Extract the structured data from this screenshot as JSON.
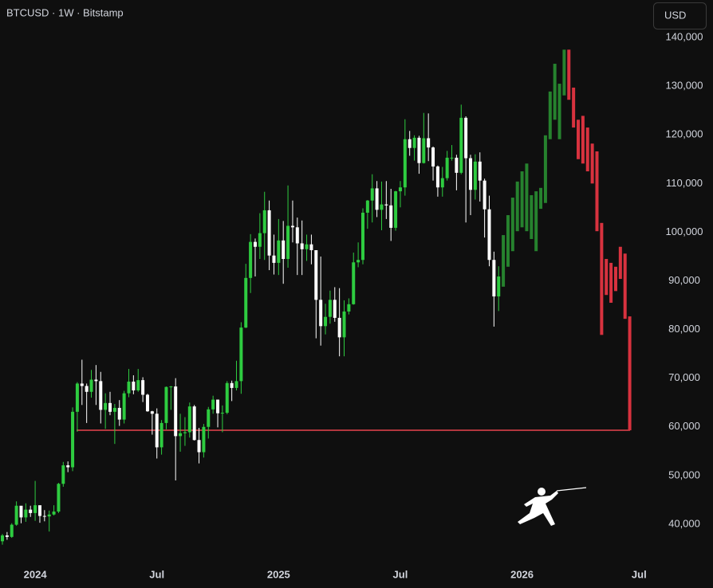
{
  "chart_data": {
    "type": "candlestick",
    "title": "BTCUSD · 1W · Bitstamp",
    "currency": "USD",
    "categories": [
      null,
      null,
      null,
      null,
      null,
      null,
      null,
      "2024",
      null,
      null,
      null,
      null,
      null,
      null,
      null,
      null,
      null,
      null,
      null,
      null,
      null,
      null,
      null,
      null,
      null,
      null,
      null,
      null,
      null,
      null,
      null,
      null,
      null,
      "Jul",
      null,
      null,
      null,
      null,
      null,
      null,
      null,
      null,
      null,
      null,
      null,
      null,
      null,
      null,
      null,
      null,
      null,
      null,
      null,
      null,
      null,
      null,
      null,
      null,
      null,
      "2025",
      null,
      null,
      null,
      null,
      null,
      null,
      null,
      null,
      null,
      null,
      null,
      null,
      null,
      null,
      null,
      null,
      null,
      null,
      null,
      null,
      null,
      null,
      null,
      null,
      null,
      "Jul",
      null,
      null,
      null,
      null,
      null,
      null,
      null,
      null,
      null,
      null,
      null,
      null,
      null,
      null,
      null,
      null,
      null,
      null,
      null,
      null,
      null,
      null,
      null,
      null,
      null,
      "2026",
      null,
      null,
      null,
      null,
      null,
      null,
      null,
      null,
      null,
      null,
      null,
      null,
      null,
      null,
      null,
      null,
      null,
      null,
      null,
      null,
      null,
      null,
      null,
      null,
      "Jul"
    ],
    "series": [
      {
        "up_color": "#2ecc40",
        "down_color": "#ffffff",
        "open": [
          36500,
          37700,
          37400,
          39900,
          43800,
          41400,
          43000,
          42300,
          43900,
          41700,
          41600,
          42000,
          42600,
          48300,
          52100,
          51700,
          63100,
          68900,
          68400,
          67200,
          69700,
          69400,
          63500,
          64900,
          63100,
          63900,
          61500,
          66900,
          69300,
          67500,
          69600,
          66600,
          63200,
          62700,
          55800,
          60800,
          68200,
          68300,
          58100,
          58700,
          58900,
          64200,
          57300,
          54800,
          60000,
          63600,
          65600,
          62800,
          62900,
          69000,
          68000,
          69400,
          80400,
          90600,
          98000,
          97000,
          99800,
          104500,
          95200,
          93700,
          98300,
          94500,
          101300,
          101000,
          97700,
          96500,
          97500,
          96300,
          86100,
          80700,
          82600,
          86100,
          82400,
          78400,
          83700,
          85200,
          93800,
          94300,
          104000,
          106500,
          109000,
          104600,
          105700,
          105500,
          100900,
          108400,
          109200,
          119100,
          117300,
          119400,
          114200,
          119300,
          117400,
          113500,
          109200,
          111100,
          115300,
          115300,
          112200,
          123500,
          115200,
          108700,
          114500,
          110600,
          104700,
          94300,
          86800,
          null,
          null,
          null,
          null,
          null,
          null,
          null,
          null,
          null,
          null,
          null,
          null,
          null,
          null,
          null,
          null,
          null,
          null,
          null,
          null,
          null,
          null,
          null,
          null,
          null,
          null,
          null,
          null,
          null,
          null
        ],
        "high": [
          38000,
          38400,
          40200,
          44700,
          43500,
          44300,
          43800,
          48900,
          43500,
          42900,
          42800,
          43900,
          48500,
          52800,
          52900,
          64000,
          69200,
          73800,
          68900,
          71700,
          72700,
          71300,
          66900,
          67200,
          64700,
          65500,
          67400,
          71900,
          70600,
          71900,
          70200,
          66800,
          63300,
          63800,
          61400,
          68300,
          68400,
          70000,
          62700,
          62000,
          65000,
          64500,
          59800,
          60600,
          64100,
          66400,
          65600,
          64400,
          69400,
          69500,
          73600,
          81500,
          93500,
          99600,
          98700,
          103900,
          108300,
          106500,
          99500,
          102700,
          102300,
          109600,
          106500,
          103000,
          102400,
          99500,
          99500,
          96300,
          95000,
          85300,
          88000,
          88700,
          88500,
          86000,
          86400,
          95800,
          97900,
          104900,
          106600,
          111900,
          110500,
          110400,
          110500,
          108900,
          108500,
          110500,
          123200,
          120800,
          119900,
          119800,
          124500,
          124400,
          117600,
          113700,
          113400,
          116700,
          117900,
          115900,
          126200,
          123800,
          115900,
          116000,
          116400,
          111000,
          107500,
          96000,
          93000,
          null,
          null,
          null,
          null,
          null,
          null,
          null,
          null,
          null,
          null,
          null,
          null,
          null,
          null,
          null,
          null,
          null,
          null,
          null,
          null,
          null,
          null,
          null,
          null,
          null,
          null,
          null,
          null,
          null,
          null
        ],
        "low": [
          35800,
          36800,
          37200,
          39700,
          40200,
          40500,
          41500,
          40700,
          40300,
          40600,
          38500,
          41800,
          42300,
          47700,
          50700,
          50900,
          59000,
          64500,
          60800,
          66000,
          64500,
          60700,
          59600,
          62400,
          56500,
          60200,
          60700,
          66100,
          66700,
          67200,
          65100,
          63100,
          58400,
          53500,
          54300,
          59500,
          63500,
          49000,
          54900,
          56100,
          57800,
          57200,
          52500,
          53700,
          57600,
          62700,
          59900,
          58900,
          62600,
          65300,
          67500,
          66800,
          80300,
          87500,
          90900,
          94500,
          94300,
          92200,
          91300,
          91200,
          89400,
          92700,
          97900,
          91200,
          91200,
          94100,
          93400,
          78200,
          76700,
          79000,
          81200,
          81600,
          74500,
          74500,
          83100,
          85100,
          92800,
          93400,
          100700,
          102000,
          103100,
          100400,
          102700,
          98200,
          100300,
          105100,
          107500,
          115700,
          114700,
          112000,
          114100,
          114600,
          110600,
          107300,
          107300,
          110600,
          114700,
          108600,
          111900,
          102000,
          103500,
          106700,
          106300,
          98900,
          93000,
          80600,
          83800,
          null,
          null,
          null,
          null,
          null,
          null,
          null,
          null,
          null,
          null,
          null,
          null,
          null,
          null,
          null,
          null,
          null,
          null,
          null,
          null,
          null,
          null,
          null,
          null,
          null,
          null,
          null,
          null,
          null,
          null
        ],
        "close": [
          37700,
          37400,
          39900,
          43800,
          41400,
          43000,
          42300,
          43900,
          41700,
          41600,
          42000,
          42600,
          48300,
          52100,
          51700,
          63100,
          68900,
          68400,
          67200,
          69700,
          69400,
          63500,
          64900,
          63100,
          63900,
          61500,
          66900,
          69300,
          67500,
          69600,
          66600,
          63200,
          62700,
          55800,
          60800,
          68200,
          68300,
          58100,
          58700,
          58900,
          64200,
          57300,
          54800,
          60000,
          63600,
          65600,
          62800,
          62900,
          69000,
          68000,
          69400,
          80400,
          90600,
          98000,
          97000,
          99800,
          104500,
          95200,
          93700,
          98300,
          94500,
          101300,
          101000,
          97700,
          96500,
          97500,
          96300,
          86100,
          80700,
          82600,
          86100,
          82400,
          78400,
          83700,
          85200,
          93800,
          94300,
          104000,
          106500,
          109000,
          104600,
          105700,
          105500,
          100900,
          108400,
          109200,
          119100,
          117300,
          119400,
          114200,
          119300,
          117400,
          113500,
          109200,
          111100,
          115300,
          115300,
          112200,
          123500,
          115200,
          108700,
          114500,
          110600,
          104700,
          94300,
          86800,
          90900,
          null,
          null,
          null,
          null,
          null,
          null,
          null,
          null,
          null,
          null,
          null,
          null,
          null,
          null,
          null,
          null,
          null,
          null,
          null,
          null,
          null,
          null,
          null,
          null,
          null,
          null,
          null,
          null,
          null,
          null
        ]
      },
      {
        "up_color": "#26822e",
        "down_color": "#d8323f",
        "open": [
          null,
          null,
          null,
          null,
          null,
          null,
          null,
          null,
          null,
          null,
          null,
          null,
          null,
          null,
          null,
          null,
          null,
          null,
          null,
          null,
          null,
          null,
          null,
          null,
          null,
          null,
          null,
          null,
          null,
          null,
          null,
          null,
          null,
          null,
          null,
          null,
          null,
          null,
          null,
          null,
          null,
          null,
          null,
          null,
          null,
          null,
          null,
          null,
          null,
          null,
          null,
          null,
          null,
          null,
          null,
          null,
          null,
          null,
          null,
          null,
          null,
          null,
          null,
          null,
          null,
          null,
          null,
          null,
          null,
          null,
          null,
          null,
          null,
          null,
          null,
          null,
          null,
          null,
          null,
          null,
          null,
          null,
          null,
          null,
          null,
          null,
          null,
          null,
          null,
          null,
          null,
          null,
          null,
          null,
          null,
          null,
          null,
          null,
          null,
          null,
          null,
          null,
          null,
          null,
          null,
          null,
          null,
          88800,
          92900,
          96100,
          100200,
          101000,
          100200,
          98600,
          96100,
          104800,
          106000,
          119100,
          123100,
          119100,
          128100,
          137500,
          129700,
          123100,
          123900,
          121500,
          118200,
          116600,
          101900,
          94500,
          93700,
          92900,
          97000,
          95600,
          82700,
          null,
          null
        ],
        "close": [
          null,
          null,
          null,
          null,
          null,
          null,
          null,
          null,
          null,
          null,
          null,
          null,
          null,
          null,
          null,
          null,
          null,
          null,
          null,
          null,
          null,
          null,
          null,
          null,
          null,
          null,
          null,
          null,
          null,
          null,
          null,
          null,
          null,
          null,
          null,
          null,
          null,
          null,
          null,
          null,
          null,
          null,
          null,
          null,
          null,
          null,
          null,
          null,
          null,
          null,
          null,
          null,
          null,
          null,
          null,
          null,
          null,
          null,
          null,
          null,
          null,
          null,
          null,
          null,
          null,
          null,
          null,
          null,
          null,
          null,
          null,
          null,
          null,
          null,
          null,
          null,
          null,
          null,
          null,
          null,
          null,
          null,
          null,
          null,
          null,
          null,
          null,
          null,
          null,
          null,
          null,
          null,
          null,
          null,
          null,
          null,
          null,
          null,
          null,
          null,
          null,
          null,
          null,
          null,
          null,
          null,
          null,
          99400,
          103500,
          107100,
          110400,
          112500,
          114100,
          107600,
          108400,
          109100,
          119900,
          128900,
          134600,
          130500,
          137500,
          127200,
          121500,
          115000,
          114100,
          112500,
          110000,
          100200,
          78900,
          87100,
          85500,
          87900,
          90400,
          82200,
          59300,
          null,
          null
        ]
      }
    ],
    "ylim": [
      32300,
      147700
    ],
    "yticks": [
      {
        "value": 40000,
        "label": "40,000"
      },
      {
        "value": 50000,
        "label": "50,000"
      },
      {
        "value": 60000,
        "label": "60,000"
      },
      {
        "value": 70000,
        "label": "70,000"
      },
      {
        "value": 80000,
        "label": "80,000"
      },
      {
        "value": 90000,
        "label": "90,000"
      },
      {
        "value": 100000,
        "label": "100,000"
      },
      {
        "value": 110000,
        "label": "110,000"
      },
      {
        "value": 120000,
        "label": "120,000"
      },
      {
        "value": 130000,
        "label": "130,000"
      },
      {
        "value": 140000,
        "label": "140,000"
      }
    ],
    "hline": {
      "value": 59300,
      "color": "#e8434f"
    }
  }
}
